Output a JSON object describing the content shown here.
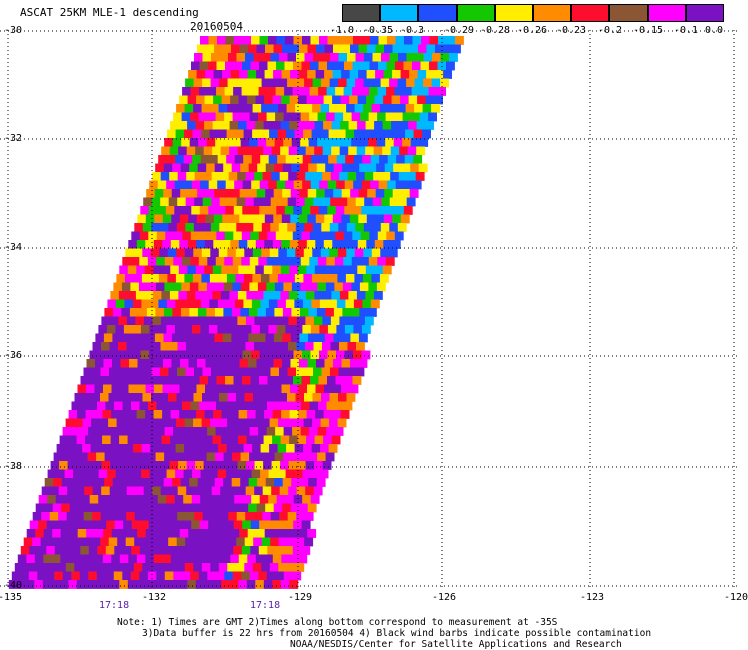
{
  "title": "ASCAT 25KM MLE-1 descending",
  "date": "20160504",
  "colorbar": {
    "segments": [
      "#474747",
      "#00b8ff",
      "#1f4fff",
      "#13c800",
      "#ffee00",
      "#ff8c00",
      "#ff0d2e",
      "#8a5634",
      "#ff00ff",
      "#7a12c4"
    ],
    "ticks": [
      "-1.0",
      "-0.35",
      "-0.3",
      "-0.29",
      "-0.28",
      "-0.26",
      "-0.23",
      "-0.2",
      "-0.15",
      "-0.1",
      "0.0"
    ]
  },
  "axes": {
    "lat_labels": [
      "-30",
      "-32",
      "-34",
      "-36",
      "-38",
      "-40"
    ],
    "lon_labels": [
      "-135",
      "-132",
      "-129",
      "-126",
      "-123",
      "-120"
    ]
  },
  "time_labels": [
    "17:18",
    "17:18"
  ],
  "notes": [
    "Note: 1) Times are GMT 2)Times along bottom correspond to measurement at -35S",
    "3)Data buffer is 22 hrs from 20160504 4) Black wind barbs indicate possible contamination",
    "NOAA/NESDIS/Center for Satellite Applications and Research"
  ],
  "swath": {
    "description_colors": [
      "#474747",
      "#00b8ff",
      "#1f4fff",
      "#13c800",
      "#ffee00",
      "#ff8c00",
      "#ff0d2e",
      "#8a5634",
      "#ff00ff",
      "#7a12c4"
    ]
  }
}
